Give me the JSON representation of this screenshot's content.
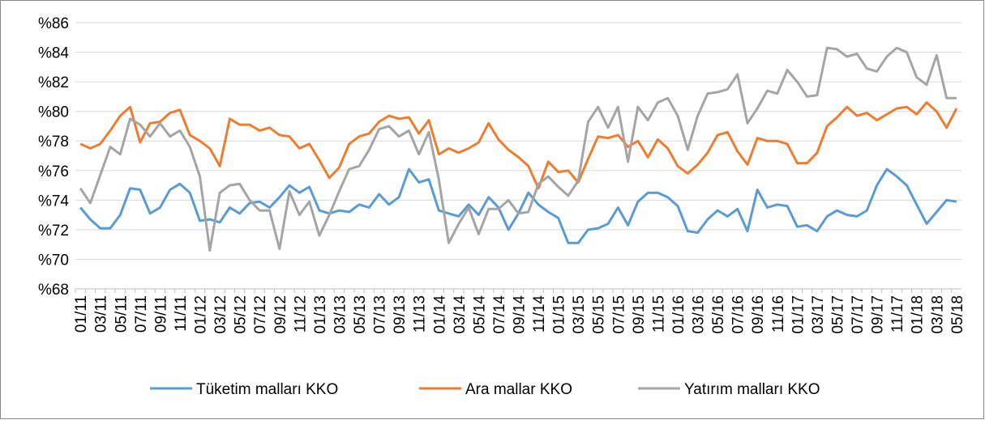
{
  "chart_data": {
    "type": "line",
    "categories": [
      "01/11",
      null,
      "03/11",
      null,
      "05/11",
      null,
      "07/11",
      null,
      "09/11",
      null,
      "11/11",
      null,
      "01/12",
      null,
      "03/12",
      null,
      "05/12",
      null,
      "07/12",
      null,
      "09/12",
      null,
      "11/12",
      null,
      "01/13",
      null,
      "03/13",
      null,
      "05/13",
      null,
      "07/13",
      null,
      "09/13",
      null,
      "11/13",
      null,
      "01/14",
      null,
      "03/14",
      null,
      "05/14",
      null,
      "07/14",
      null,
      "09/14",
      null,
      "11/14",
      null,
      "01/15",
      null,
      "03/15",
      null,
      "05/15",
      null,
      "07/15",
      null,
      "09/15",
      null,
      "11/15",
      null,
      "01/16",
      null,
      "03/16",
      null,
      "05/16",
      null,
      "07/16",
      null,
      "09/16",
      null,
      "11/16",
      null,
      "01/17",
      null,
      "03/17",
      null,
      "05/17",
      null,
      "07/17",
      null,
      "09/17",
      null,
      "11/17",
      null,
      "01/18",
      null,
      "03/18",
      null,
      "05/18"
    ],
    "series": [
      {
        "name": "Tüketim malları KKO",
        "color": "#5b9bd5",
        "values": [
          73.5,
          72.7,
          72.1,
          72.1,
          73.0,
          74.8,
          74.7,
          73.1,
          73.5,
          74.7,
          75.1,
          74.5,
          72.6,
          72.7,
          72.5,
          73.5,
          73.1,
          73.8,
          73.9,
          73.5,
          74.2,
          75.0,
          74.5,
          74.9,
          73.3,
          73.1,
          73.3,
          73.2,
          73.7,
          73.5,
          74.4,
          73.7,
          74.2,
          76.1,
          75.2,
          75.4,
          73.3,
          73.1,
          72.9,
          73.7,
          73.0,
          74.2,
          73.5,
          72.0,
          73.1,
          74.5,
          73.7,
          73.2,
          72.8,
          71.1,
          71.1,
          72.0,
          72.1,
          72.4,
          73.5,
          72.3,
          73.9,
          74.5,
          74.5,
          74.2,
          73.6,
          71.9,
          71.8,
          72.7,
          73.3,
          72.9,
          73.4,
          71.9,
          74.7,
          73.5,
          73.7,
          73.6,
          72.2,
          72.3,
          71.9,
          72.9,
          73.3,
          73.0,
          72.9,
          73.3,
          75.0,
          76.1,
          75.6,
          75.0,
          73.7,
          72.4,
          73.2,
          74.0,
          73.9
        ]
      },
      {
        "name": "Ara mallar KKO",
        "color": "#ed7d31",
        "values": [
          77.8,
          77.5,
          77.8,
          78.7,
          79.7,
          80.3,
          77.9,
          79.2,
          79.3,
          79.9,
          80.1,
          78.4,
          78.0,
          77.5,
          76.3,
          79.5,
          79.1,
          79.1,
          78.7,
          78.9,
          78.4,
          78.3,
          77.5,
          77.8,
          76.7,
          75.5,
          76.2,
          77.8,
          78.3,
          78.5,
          79.3,
          79.7,
          79.5,
          79.6,
          78.5,
          79.4,
          77.1,
          77.5,
          77.2,
          77.5,
          77.9,
          79.2,
          78.1,
          77.4,
          76.9,
          76.3,
          74.8,
          76.6,
          75.9,
          76.0,
          75.2,
          76.8,
          78.3,
          78.2,
          78.4,
          77.6,
          78.0,
          76.9,
          78.1,
          77.5,
          76.3,
          75.8,
          76.4,
          77.2,
          78.4,
          78.6,
          77.3,
          76.4,
          78.2,
          78.0,
          78.0,
          77.8,
          76.5,
          76.5,
          77.2,
          79.0,
          79.6,
          80.3,
          79.7,
          79.9,
          79.4,
          79.8,
          80.2,
          80.3,
          79.8,
          80.6,
          80.0,
          78.9,
          80.2
        ]
      },
      {
        "name": "Yatırım malları KKO",
        "color": "#a5a5a5",
        "values": [
          74.8,
          73.8,
          75.7,
          77.6,
          77.1,
          79.5,
          79.1,
          78.3,
          79.2,
          78.3,
          78.7,
          77.6,
          75.6,
          70.6,
          74.5,
          75.0,
          75.1,
          74.0,
          73.3,
          73.3,
          70.7,
          74.6,
          73.0,
          73.9,
          71.6,
          73.0,
          74.6,
          76.1,
          76.3,
          77.4,
          78.8,
          79.0,
          78.3,
          78.7,
          77.1,
          78.6,
          75.4,
          71.1,
          72.4,
          73.5,
          71.7,
          73.4,
          73.4,
          74.0,
          73.1,
          73.2,
          75.1,
          75.6,
          74.9,
          74.3,
          75.3,
          79.3,
          80.3,
          78.9,
          80.3,
          76.6,
          80.3,
          79.4,
          80.6,
          80.9,
          79.7,
          77.4,
          79.7,
          81.2,
          81.3,
          81.5,
          82.5,
          79.2,
          80.2,
          81.4,
          81.2,
          82.8,
          82.0,
          81.0,
          81.1,
          84.3,
          84.2,
          83.7,
          83.9,
          82.9,
          82.7,
          83.7,
          84.3,
          84.0,
          82.3,
          81.8,
          83.8,
          80.9,
          80.9
        ]
      }
    ],
    "ylim": [
      68,
      86
    ],
    "yticks": [
      {
        "value": 68,
        "label": "%68"
      },
      {
        "value": 70,
        "label": "%70"
      },
      {
        "value": 72,
        "label": "%72"
      },
      {
        "value": 74,
        "label": "%74"
      },
      {
        "value": 76,
        "label": "%76"
      },
      {
        "value": 78,
        "label": "%78"
      },
      {
        "value": 80,
        "label": "%80"
      },
      {
        "value": 82,
        "label": "%82"
      },
      {
        "value": 84,
        "label": "%84"
      },
      {
        "value": 86,
        "label": "%86"
      }
    ],
    "grid": true,
    "legend": "bottom"
  }
}
